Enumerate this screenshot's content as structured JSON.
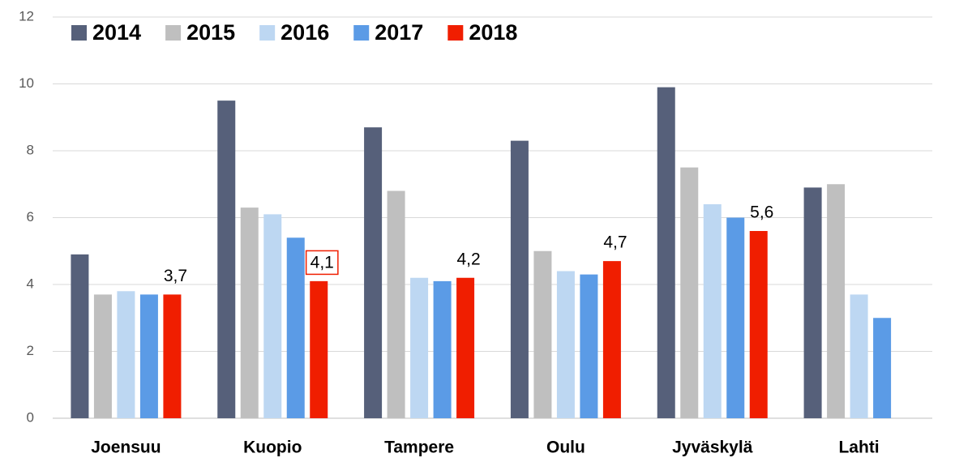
{
  "chart_data": {
    "type": "bar",
    "categories": [
      "Joensuu",
      "Kuopio",
      "Tampere",
      "Oulu",
      "Jyväskylä",
      "Lahti"
    ],
    "series": [
      {
        "name": "2014",
        "color": "#56607a",
        "values": [
          4.9,
          9.5,
          8.7,
          8.3,
          9.9,
          6.9
        ]
      },
      {
        "name": "2015",
        "color": "#bfbfbf",
        "values": [
          3.7,
          6.3,
          6.8,
          5.0,
          7.5,
          7.0
        ]
      },
      {
        "name": "2016",
        "color": "#bdd7f2",
        "values": [
          3.8,
          6.1,
          4.2,
          4.4,
          6.4,
          3.7
        ]
      },
      {
        "name": "2017",
        "color": "#5b9be6",
        "values": [
          3.7,
          5.4,
          4.1,
          4.3,
          6.0,
          3.0
        ]
      },
      {
        "name": "2018",
        "color": "#f01e00",
        "values": [
          3.7,
          4.1,
          4.2,
          4.7,
          5.6,
          null
        ],
        "value_labels": [
          "3,7",
          "4,1",
          "4,2",
          "4,7",
          "5,6",
          null
        ]
      }
    ],
    "ylim": [
      0,
      12
    ],
    "yticks": [
      0,
      2,
      4,
      6,
      8,
      10,
      12
    ],
    "grid": true,
    "legend": "top-left"
  }
}
